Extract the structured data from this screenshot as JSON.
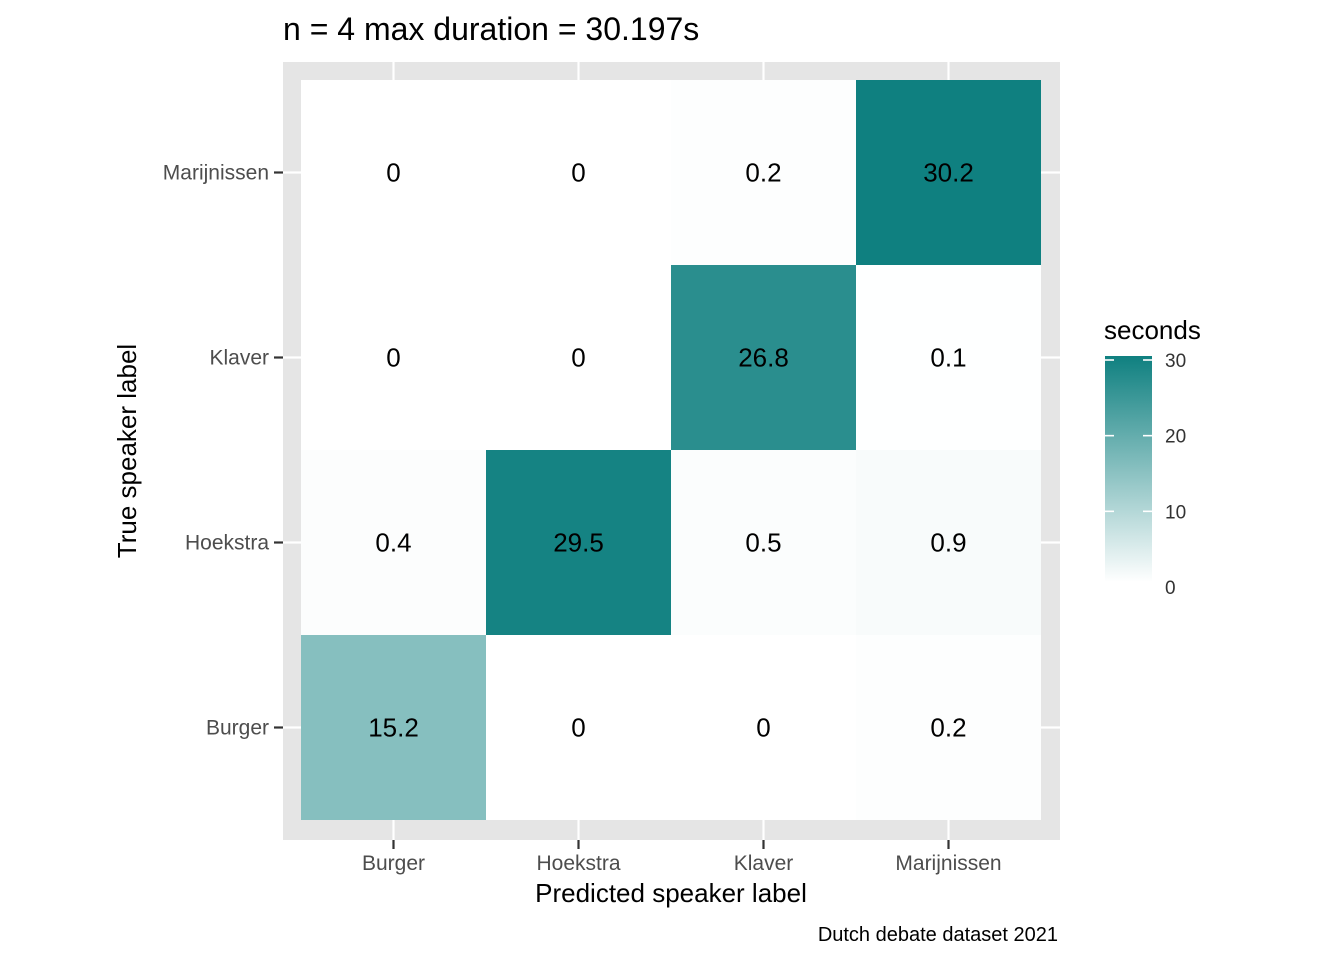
{
  "chart_data": {
    "type": "heatmap",
    "title": "n = 4 max duration = 30.197s",
    "xlabel": "Predicted speaker label",
    "ylabel": "True speaker label",
    "caption": "Dutch debate dataset 2021",
    "x_categories": [
      "Burger",
      "Hoekstra",
      "Klaver",
      "Marijnissen"
    ],
    "y_categories": [
      "Burger",
      "Hoekstra",
      "Klaver",
      "Marijnissen"
    ],
    "values": [
      [
        15.2,
        0,
        0,
        0.2
      ],
      [
        0.4,
        29.5,
        0.5,
        0.9
      ],
      [
        0,
        0,
        26.8,
        0.1
      ],
      [
        0,
        0,
        0.2,
        30.2
      ]
    ],
    "value_labels": [
      [
        "15.2",
        "0",
        "0",
        "0.2"
      ],
      [
        "0.4",
        "29.5",
        "0.5",
        "0.9"
      ],
      [
        "0",
        "0",
        "26.8",
        "0.1"
      ],
      [
        "0",
        "0",
        "0.2",
        "30.2"
      ]
    ],
    "color_scale": {
      "low": "#ffffff",
      "high": "#0f8080",
      "min": 0,
      "max": 30.2
    },
    "legend": {
      "title": "seconds",
      "ticks": [
        0,
        10,
        20,
        30
      ],
      "tick_labels": [
        "0",
        "10",
        "20",
        "30"
      ],
      "placement": "right"
    },
    "panel_background": "#e5e5e5",
    "grid_color": "#ffffff",
    "grid": true
  }
}
